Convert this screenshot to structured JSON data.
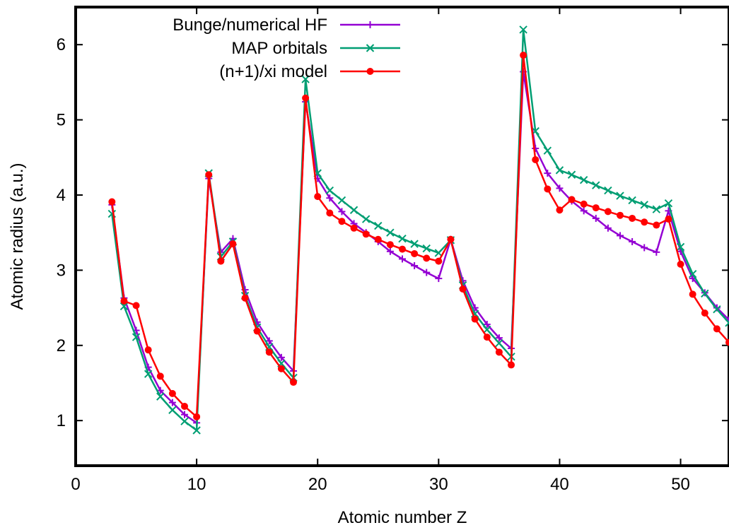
{
  "chart_data": {
    "type": "line",
    "xlabel": "Atomic number Z",
    "ylabel": "Atomic radius (a.u.)",
    "xlim": [
      0,
      54
    ],
    "ylim": [
      0.4,
      6.5
    ],
    "xticks": [
      0,
      10,
      20,
      30,
      40,
      50
    ],
    "yticks": [
      1,
      2,
      3,
      4,
      5,
      6
    ],
    "grid": false,
    "legend_position": "top-left",
    "series": [
      {
        "name": "Bunge/numerical HF",
        "color": "#9400d3",
        "marker": "plus",
        "x": [
          3,
          4,
          5,
          6,
          7,
          8,
          9,
          10,
          11,
          12,
          13,
          14,
          15,
          16,
          17,
          18,
          19,
          20,
          21,
          22,
          23,
          24,
          25,
          26,
          27,
          28,
          29,
          30,
          31,
          32,
          33,
          34,
          35,
          36,
          37,
          38,
          39,
          40,
          41,
          42,
          43,
          44,
          45,
          46,
          47,
          48,
          49,
          50,
          51,
          52,
          53,
          54
        ],
        "y": [
          3.87,
          2.63,
          2.2,
          1.71,
          1.4,
          1.24,
          1.08,
          0.97,
          4.22,
          3.24,
          3.42,
          2.74,
          2.31,
          2.06,
          1.84,
          1.66,
          5.24,
          4.22,
          3.96,
          3.78,
          3.62,
          3.5,
          3.38,
          3.25,
          3.15,
          3.06,
          2.97,
          2.89,
          3.41,
          2.86,
          2.5,
          2.28,
          2.1,
          1.96,
          5.64,
          4.62,
          4.29,
          4.09,
          3.92,
          3.79,
          3.69,
          3.56,
          3.46,
          3.38,
          3.3,
          3.24,
          3.79,
          3.25,
          2.89,
          2.7,
          2.5,
          2.34
        ]
      },
      {
        "name": "MAP orbitals",
        "color": "#009e73",
        "marker": "cross",
        "x": [
          3,
          4,
          5,
          6,
          7,
          8,
          9,
          10,
          11,
          12,
          13,
          14,
          15,
          16,
          17,
          18,
          19,
          20,
          21,
          22,
          23,
          24,
          25,
          26,
          27,
          28,
          29,
          30,
          31,
          32,
          33,
          34,
          35,
          36,
          37,
          38,
          39,
          40,
          41,
          42,
          43,
          44,
          45,
          46,
          47,
          48,
          49,
          50,
          51,
          52,
          53,
          54
        ],
        "y": [
          3.75,
          2.52,
          2.11,
          1.62,
          1.32,
          1.14,
          0.99,
          0.87,
          4.29,
          3.18,
          3.38,
          2.66,
          2.24,
          1.98,
          1.76,
          1.57,
          5.54,
          4.29,
          4.06,
          3.93,
          3.8,
          3.68,
          3.59,
          3.5,
          3.42,
          3.35,
          3.29,
          3.23,
          3.4,
          2.8,
          2.42,
          2.21,
          2.03,
          1.85,
          6.2,
          4.85,
          4.59,
          4.33,
          4.27,
          4.2,
          4.13,
          4.06,
          3.99,
          3.93,
          3.87,
          3.81,
          3.89,
          3.31,
          2.95,
          2.69,
          2.48,
          2.3
        ]
      },
      {
        "name": "(n+1)/xi model",
        "color": "#ff0000",
        "marker": "dot",
        "x": [
          3,
          4,
          5,
          6,
          7,
          8,
          9,
          10,
          11,
          12,
          13,
          14,
          15,
          16,
          17,
          18,
          19,
          20,
          21,
          22,
          23,
          24,
          25,
          26,
          27,
          28,
          29,
          30,
          31,
          32,
          33,
          34,
          35,
          36,
          37,
          38,
          39,
          40,
          41,
          42,
          43,
          44,
          45,
          46,
          47,
          48,
          49,
          50,
          51,
          52,
          53,
          54
        ],
        "y": [
          3.91,
          2.59,
          2.53,
          1.94,
          1.59,
          1.36,
          1.19,
          1.05,
          4.27,
          3.12,
          3.35,
          2.63,
          2.19,
          1.91,
          1.69,
          1.51,
          5.29,
          3.98,
          3.76,
          3.65,
          3.56,
          3.48,
          3.41,
          3.34,
          3.28,
          3.22,
          3.16,
          3.12,
          3.41,
          2.75,
          2.35,
          2.11,
          1.91,
          1.74,
          5.86,
          4.47,
          4.08,
          3.8,
          3.94,
          3.88,
          3.83,
          3.78,
          3.73,
          3.69,
          3.64,
          3.6,
          3.68,
          3.08,
          2.68,
          2.43,
          2.22,
          2.04
        ]
      }
    ]
  }
}
